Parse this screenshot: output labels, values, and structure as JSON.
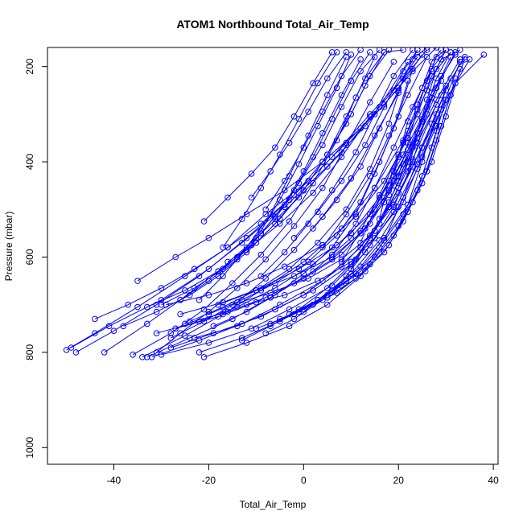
{
  "chart_data": {
    "type": "line",
    "title": "ATOM1 Northbound Total_Air_Temp",
    "xlabel": "Total_Air_Temp",
    "ylabel": "Pressure (mbar)",
    "xlim": [
      -54,
      41
    ],
    "ylim": [
      1035,
      160
    ],
    "y_reversed": true,
    "x_ticks": [
      -40,
      -20,
      0,
      20,
      40
    ],
    "y_ticks": [
      200,
      400,
      600,
      800,
      1000
    ],
    "series_color": "#0000ff",
    "marker": "open-circle",
    "series": [
      {
        "x": [
          -50,
          -44,
          -35,
          -25,
          -16,
          -8,
          1,
          9,
          17,
          23,
          28
        ],
        "y": [
          795,
          760,
          705,
          640,
          580,
          510,
          440,
          360,
          280,
          210,
          160
        ]
      },
      {
        "x": [
          -49,
          -41,
          -30,
          -20,
          -12,
          -3,
          6,
          14,
          21,
          26
        ],
        "y": [
          790,
          745,
          690,
          625,
          560,
          480,
          390,
          300,
          225,
          165
        ]
      },
      {
        "x": [
          -48,
          -40,
          -31,
          -22,
          -13,
          -4,
          5,
          13,
          20,
          25
        ],
        "y": [
          800,
          755,
          700,
          640,
          570,
          495,
          410,
          325,
          245,
          175
        ]
      },
      {
        "x": [
          -42,
          -33,
          -26,
          -18,
          -10,
          -1,
          8,
          16,
          22
        ],
        "y": [
          800,
          740,
          690,
          630,
          560,
          475,
          380,
          285,
          190
        ]
      },
      {
        "x": [
          -35,
          -27,
          -20,
          -12,
          -4,
          4,
          12,
          19,
          24
        ],
        "y": [
          650,
          600,
          560,
          510,
          460,
          400,
          330,
          250,
          180
        ]
      },
      {
        "x": [
          -34,
          -25,
          -17,
          -9,
          0,
          8,
          15,
          21,
          26
        ],
        "y": [
          810,
          765,
          720,
          670,
          610,
          540,
          455,
          355,
          250
        ]
      },
      {
        "x": [
          -33,
          -24,
          -15,
          -7,
          2,
          10,
          17,
          22,
          27
        ],
        "y": [
          810,
          770,
          730,
          685,
          630,
          560,
          475,
          375,
          265
        ]
      },
      {
        "x": [
          -32,
          -22,
          -13,
          -5,
          4,
          12,
          18,
          23,
          28
        ],
        "y": [
          810,
          775,
          740,
          700,
          650,
          580,
          495,
          395,
          280
        ]
      },
      {
        "x": [
          -30,
          -20,
          -11,
          -3,
          6,
          13,
          19,
          24,
          29
        ],
        "y": [
          805,
          780,
          750,
          710,
          660,
          590,
          505,
          405,
          290
        ]
      },
      {
        "x": [
          -21,
          -12,
          -3,
          5,
          12,
          17,
          21,
          25,
          30
        ],
        "y": [
          810,
          780,
          745,
          700,
          640,
          565,
          475,
          370,
          250
        ]
      },
      {
        "x": [
          -28,
          -19,
          -9,
          0,
          8,
          15,
          20,
          24,
          29
        ],
        "y": [
          790,
          760,
          725,
          680,
          620,
          545,
          455,
          350,
          230
        ]
      },
      {
        "x": [
          -31,
          -22,
          -14,
          -6,
          2,
          10,
          16,
          21,
          26,
          31
        ],
        "y": [
          760,
          735,
          705,
          665,
          615,
          550,
          475,
          385,
          285,
          180
        ]
      },
      {
        "x": [
          -27,
          -18,
          -10,
          -2,
          6,
          13,
          18,
          23,
          28,
          33
        ],
        "y": [
          750,
          725,
          695,
          655,
          605,
          540,
          460,
          370,
          270,
          185
        ]
      },
      {
        "x": [
          -25,
          -16,
          -8,
          0,
          8,
          14,
          19,
          24,
          29,
          34
        ],
        "y": [
          740,
          715,
          685,
          645,
          595,
          530,
          450,
          360,
          260,
          180
        ]
      },
      {
        "x": [
          -23,
          -14,
          -6,
          2,
          10,
          15,
          20,
          25,
          30,
          35
        ],
        "y": [
          770,
          745,
          710,
          670,
          615,
          545,
          465,
          370,
          270,
          185
        ]
      },
      {
        "x": [
          -26,
          -17,
          -9,
          -1,
          7,
          14,
          19,
          24,
          28,
          32
        ],
        "y": [
          720,
          695,
          665,
          625,
          575,
          510,
          430,
          340,
          245,
          170
        ]
      },
      {
        "x": [
          -29,
          -20,
          -12,
          -4,
          4,
          11,
          17,
          22,
          27,
          32
        ],
        "y": [
          700,
          680,
          655,
          620,
          575,
          515,
          440,
          350,
          255,
          175
        ]
      },
      {
        "x": [
          -22,
          -13,
          -5,
          3,
          10,
          16,
          21,
          25,
          29,
          33
        ],
        "y": [
          800,
          770,
          735,
          690,
          635,
          565,
          485,
          390,
          290,
          190
        ]
      },
      {
        "x": [
          -18,
          -10,
          -2,
          6,
          12,
          17,
          21,
          25,
          29
        ],
        "y": [
          700,
          670,
          640,
          600,
          550,
          485,
          405,
          315,
          220
        ]
      },
      {
        "x": [
          -15,
          -7,
          1,
          8,
          14,
          19,
          23,
          27,
          31
        ],
        "y": [
          700,
          675,
          645,
          605,
          555,
          490,
          410,
          320,
          225
        ]
      },
      {
        "x": [
          -12,
          -4,
          3,
          10,
          15,
          20,
          24,
          28,
          32,
          38
        ],
        "y": [
          700,
          680,
          650,
          610,
          560,
          495,
          415,
          325,
          235,
          175
        ]
      },
      {
        "x": [
          -10,
          -2,
          5,
          11,
          17,
          21,
          25,
          28,
          31,
          34
        ],
        "y": [
          750,
          720,
          685,
          645,
          590,
          525,
          445,
          355,
          260,
          185
        ]
      },
      {
        "x": [
          -7,
          0,
          7,
          13,
          18,
          22,
          26,
          29,
          32
        ],
        "y": [
          740,
          710,
          675,
          630,
          575,
          505,
          420,
          325,
          225
        ]
      },
      {
        "x": [
          -5,
          2,
          8,
          14,
          19,
          23,
          27,
          30,
          33
        ],
        "y": [
          730,
          700,
          660,
          615,
          555,
          485,
          400,
          305,
          205
        ]
      },
      {
        "x": [
          -3,
          3,
          9,
          15,
          20,
          24,
          27,
          30
        ],
        "y": [
          720,
          690,
          650,
          600,
          535,
          460,
          370,
          270
        ]
      },
      {
        "x": [
          -1,
          5,
          11,
          16,
          21,
          25,
          28,
          30
        ],
        "y": [
          715,
          680,
          635,
          580,
          510,
          430,
          335,
          240
        ]
      },
      {
        "x": [
          0,
          6,
          12,
          17,
          22,
          25,
          28
        ],
        "y": [
          715,
          670,
          620,
          560,
          490,
          400,
          300
        ]
      },
      {
        "x": [
          -20,
          -13,
          -6,
          1,
          7,
          12,
          16,
          20,
          23
        ],
        "y": [
          720,
          690,
          655,
          610,
          555,
          485,
          400,
          305,
          205
        ]
      },
      {
        "x": [
          -24,
          -17,
          -10,
          -3,
          3,
          9,
          14,
          18,
          21,
          24
        ],
        "y": [
          735,
          705,
          670,
          625,
          570,
          500,
          415,
          320,
          225,
          165
        ]
      },
      {
        "x": [
          -19,
          -12,
          -6,
          0,
          6,
          11,
          15,
          19,
          22
        ],
        "y": [
          745,
          715,
          680,
          635,
          580,
          510,
          425,
          330,
          230
        ]
      },
      {
        "x": [
          -44,
          -37,
          -30,
          -23,
          -16,
          -9,
          -2,
          4,
          9,
          13,
          17
        ],
        "y": [
          730,
          700,
          665,
          625,
          580,
          530,
          470,
          400,
          320,
          240,
          170
        ]
      },
      {
        "x": [
          -38,
          -31,
          -24,
          -18,
          -12,
          -6,
          0,
          5,
          10,
          14,
          18
        ],
        "y": [
          745,
          715,
          680,
          640,
          590,
          530,
          460,
          385,
          300,
          220,
          165
        ]
      },
      {
        "x": [
          -36,
          -28,
          -21,
          -15,
          -9,
          -3,
          2,
          7,
          11,
          15
        ],
        "y": [
          805,
          760,
          710,
          655,
          595,
          525,
          445,
          355,
          265,
          180
        ]
      },
      {
        "x": [
          -30,
          -23,
          -17,
          -11,
          -6,
          -1,
          4,
          8,
          12,
          16
        ],
        "y": [
          700,
          665,
          625,
          575,
          515,
          445,
          365,
          285,
          210,
          165
        ]
      },
      {
        "x": [
          -26,
          -20,
          -14,
          -9,
          -4,
          0,
          4,
          8,
          12
        ],
        "y": [
          690,
          650,
          605,
          550,
          490,
          420,
          340,
          260,
          185
        ]
      },
      {
        "x": [
          -22,
          -17,
          -12,
          -7,
          -3,
          1,
          5,
          9
        ],
        "y": [
          690,
          640,
          580,
          510,
          430,
          345,
          260,
          180
        ]
      },
      {
        "x": [
          -21,
          -16,
          -11,
          -6,
          -2,
          2,
          6
        ],
        "y": [
          525,
          475,
          425,
          370,
          305,
          235,
          170
        ]
      },
      {
        "x": [
          -17,
          -13,
          -9,
          -5,
          -1,
          3,
          7
        ],
        "y": [
          580,
          520,
          455,
          385,
          310,
          235,
          170
        ]
      },
      {
        "x": [
          -11,
          -7,
          -3,
          1,
          5,
          9
        ],
        "y": [
          475,
          420,
          360,
          295,
          225,
          170
        ]
      },
      {
        "x": [
          -8,
          -4,
          0,
          4,
          8,
          12
        ],
        "y": [
          500,
          440,
          370,
          295,
          220,
          165
        ]
      },
      {
        "x": [
          -14,
          -9,
          -5,
          -1,
          3,
          7,
          10
        ],
        "y": [
          600,
          545,
          480,
          405,
          325,
          245,
          175
        ]
      },
      {
        "x": [
          -6,
          -2,
          2,
          6,
          10,
          14
        ],
        "y": [
          520,
          460,
          390,
          310,
          230,
          170
        ]
      },
      {
        "x": [
          -16,
          -10,
          -5,
          0,
          5,
          9,
          13,
          17,
          21
        ],
        "y": [
          610,
          570,
          520,
          460,
          385,
          305,
          225,
          170,
          165
        ]
      },
      {
        "x": [
          -9,
          -4,
          1,
          6,
          11,
          15,
          19,
          23
        ],
        "y": [
          640,
          590,
          530,
          460,
          380,
          300,
          220,
          165
        ]
      },
      {
        "x": [
          -2,
          3,
          8,
          13,
          17,
          21,
          24
        ],
        "y": [
          560,
          505,
          440,
          365,
          285,
          210,
          165
        ]
      },
      {
        "x": [
          2,
          7,
          12,
          16,
          20,
          23,
          26
        ],
        "y": [
          540,
          480,
          410,
          330,
          250,
          185,
          160
        ]
      },
      {
        "x": [
          4,
          9,
          14,
          18,
          22,
          26
        ],
        "y": [
          580,
          510,
          430,
          345,
          260,
          180
        ]
      },
      {
        "x": [
          6,
          11,
          15,
          19,
          23,
          27,
          30
        ],
        "y": [
          595,
          530,
          455,
          370,
          285,
          205,
          165
        ]
      },
      {
        "x": [
          8,
          12,
          16,
          20,
          24,
          27,
          31
        ],
        "y": [
          610,
          545,
          470,
          385,
          300,
          220,
          170
        ]
      },
      {
        "x": [
          10,
          14,
          18,
          22,
          25,
          28,
          31
        ],
        "y": [
          625,
          560,
          485,
          400,
          310,
          225,
          170
        ]
      },
      {
        "x": [
          12,
          15,
          19,
          22,
          26,
          29,
          33
        ],
        "y": [
          570,
          500,
          420,
          335,
          250,
          185,
          165
        ]
      },
      {
        "x": [
          -13,
          -7,
          -1,
          5,
          11,
          16,
          20,
          24
        ],
        "y": [
          775,
          745,
          710,
          665,
          605,
          530,
          440,
          340
        ]
      },
      {
        "x": [
          -8,
          -2,
          4,
          9,
          14,
          19,
          23,
          26
        ],
        "y": [
          760,
          730,
          690,
          640,
          575,
          495,
          400,
          300
        ]
      },
      {
        "x": [
          -33,
          -25,
          -18,
          -12,
          -5,
          2,
          8,
          14
        ],
        "y": [
          705,
          670,
          630,
          585,
          530,
          465,
          390,
          305
        ]
      },
      {
        "x": [
          -28,
          -21,
          -14,
          -8,
          -2,
          4,
          10,
          15,
          20
        ],
        "y": [
          770,
          735,
          695,
          645,
          585,
          515,
          435,
          345,
          255
        ]
      },
      {
        "x": [
          -31,
          -26,
          -20,
          -14,
          -8,
          -2,
          4,
          9,
          14,
          19
        ],
        "y": [
          800,
          760,
          715,
          665,
          605,
          535,
          455,
          365,
          275,
          190
        ]
      },
      {
        "x": [
          20,
          22,
          24,
          26,
          28,
          30
        ],
        "y": [
          430,
          360,
          290,
          230,
          180,
          165
        ]
      },
      {
        "x": [
          16,
          18,
          21,
          24,
          27
        ],
        "y": [
          520,
          440,
          360,
          280,
          210
        ]
      },
      {
        "x": [
          22,
          24,
          26,
          28,
          30
        ],
        "y": [
          420,
          340,
          270,
          205,
          165
        ]
      },
      {
        "x": [
          18,
          20,
          22,
          25,
          27,
          29
        ],
        "y": [
          470,
          390,
          315,
          245,
          190,
          165
        ]
      }
    ]
  }
}
